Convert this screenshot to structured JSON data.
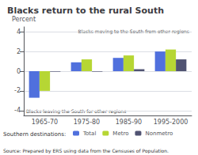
{
  "chart_data": {
    "type": "bar",
    "title": "Blacks return to the rural South",
    "ylabel": "Percent",
    "categories": [
      "1965-70",
      "1975-80",
      "1985-90",
      "1995-2000"
    ],
    "series": [
      {
        "name": "Total",
        "values": [
          -2.7,
          0.9,
          1.35,
          2.0
        ]
      },
      {
        "name": "Metro",
        "values": [
          -2.0,
          1.2,
          1.6,
          2.2
        ]
      },
      {
        "name": "Nonmetro",
        "values": [
          -0.05,
          -0.05,
          0.2,
          1.2
        ]
      }
    ],
    "ylim": [
      -4.5,
      4.5
    ],
    "yticks": [
      -4,
      -2,
      0,
      2,
      4
    ],
    "grid": true,
    "legend": "bottom",
    "legend_title": "Southern destinations:",
    "annotations": [
      "Blacks moving to the South from other regions",
      "Blacks leaving the South for other regions"
    ],
    "source": "Source: Prepared by ERS using data from the Censuses of Population."
  }
}
